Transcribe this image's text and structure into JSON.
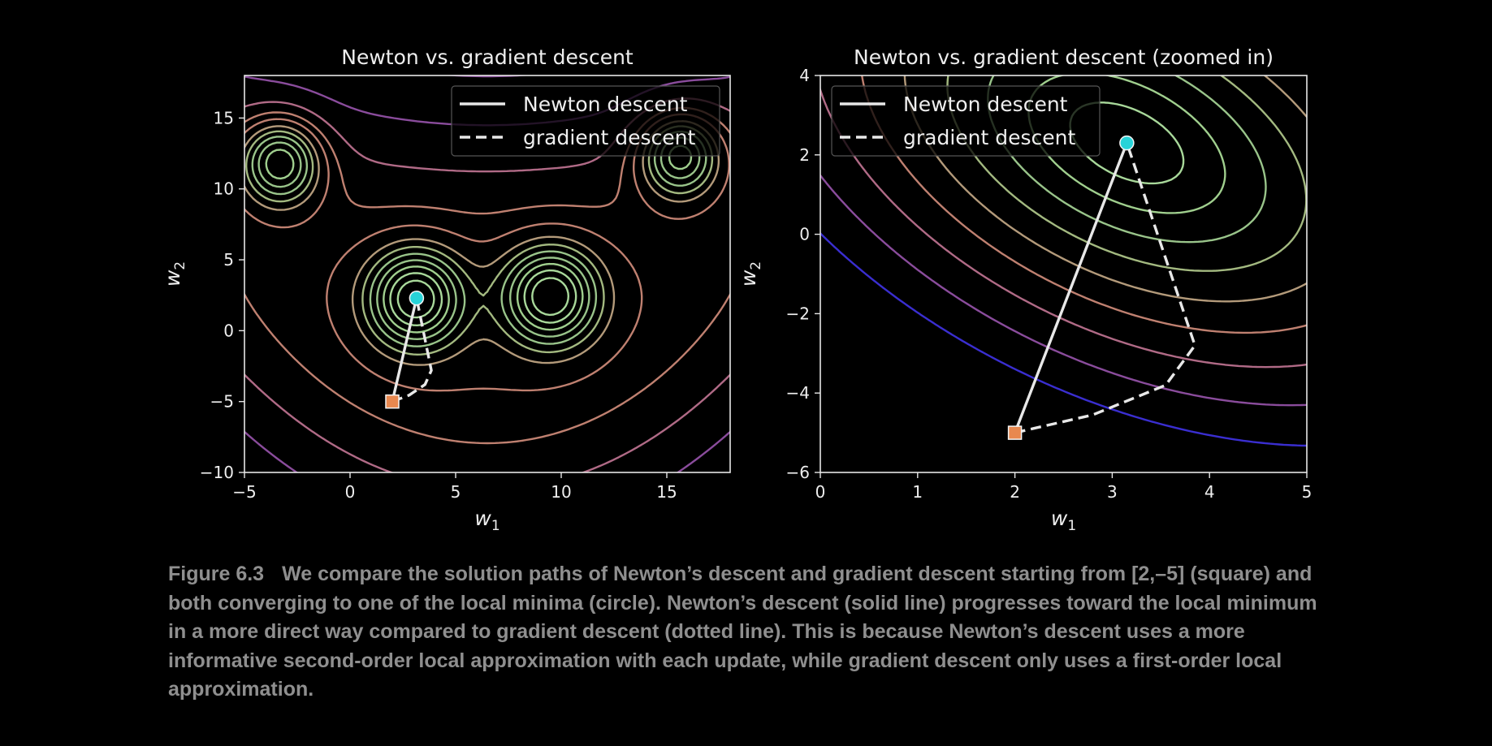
{
  "chart_data": [
    {
      "type": "line",
      "title": "Newton vs. gradient descent",
      "xlabel": "w",
      "xlabel_sub": "1",
      "ylabel": "w",
      "ylabel_sub": "2",
      "xlim": [
        -5,
        18
      ],
      "ylim": [
        -10,
        18
      ],
      "xticks": [
        -5,
        0,
        5,
        10,
        15
      ],
      "yticks": [
        -10,
        -5,
        0,
        5,
        10,
        15
      ],
      "grid": false,
      "legend": "top-right",
      "background": "contour plot of a cost function with several local minima",
      "series": [
        {
          "name": "Newton descent",
          "style": "solid",
          "color": "#e8e8e8",
          "x": [
            2,
            3.15
          ],
          "y": [
            -5,
            2.3
          ]
        },
        {
          "name": "gradient descent",
          "style": "dashed",
          "color": "#e8e8e8",
          "x": [
            2,
            2.8,
            3.55,
            3.85,
            3.15
          ],
          "y": [
            -5,
            -4.55,
            -3.8,
            -2.8,
            2.3
          ]
        }
      ],
      "start": {
        "marker": "square",
        "color": "#e8884f",
        "x": 2,
        "y": -5
      },
      "end": {
        "marker": "circle",
        "color": "#27d3d8",
        "x": 3.15,
        "y": 2.3
      }
    },
    {
      "type": "line",
      "title": "Newton vs. gradient descent (zoomed in)",
      "xlabel": "w",
      "xlabel_sub": "1",
      "ylabel": "w",
      "ylabel_sub": "2",
      "xlim": [
        0,
        5
      ],
      "ylim": [
        -6,
        4
      ],
      "xticks": [
        0,
        1,
        2,
        3,
        4,
        5
      ],
      "yticks": [
        -6,
        -4,
        -2,
        0,
        2,
        4
      ],
      "grid": false,
      "legend": "top-left",
      "background": "zoomed contour plot around the local minimum",
      "series": [
        {
          "name": "Newton descent",
          "style": "solid",
          "color": "#e8e8e8",
          "x": [
            2,
            3.15
          ],
          "y": [
            -5,
            2.3
          ]
        },
        {
          "name": "gradient descent",
          "style": "dashed",
          "color": "#e8e8e8",
          "x": [
            2,
            2.8,
            3.55,
            3.85,
            3.15
          ],
          "y": [
            -5,
            -4.55,
            -3.8,
            -2.8,
            2.3
          ]
        }
      ],
      "start": {
        "marker": "square",
        "color": "#e8884f",
        "x": 2,
        "y": -5
      },
      "end": {
        "marker": "circle",
        "color": "#27d3d8",
        "x": 3.15,
        "y": 2.3
      }
    }
  ],
  "caption": {
    "label": "Figure 6.3",
    "text": "We compare the solution paths of Newton’s descent and gradient descent starting from [2,–5] (square) and both converging to one of the local minima (circle). Newton’s descent (solid line) progresses toward the local minimum in a more direct way compared to gradient descent (dotted line). This is because Newton’s descent uses a more informative second-order local approximation with each update, while gradient descent only uses a first-order local approximation."
  }
}
